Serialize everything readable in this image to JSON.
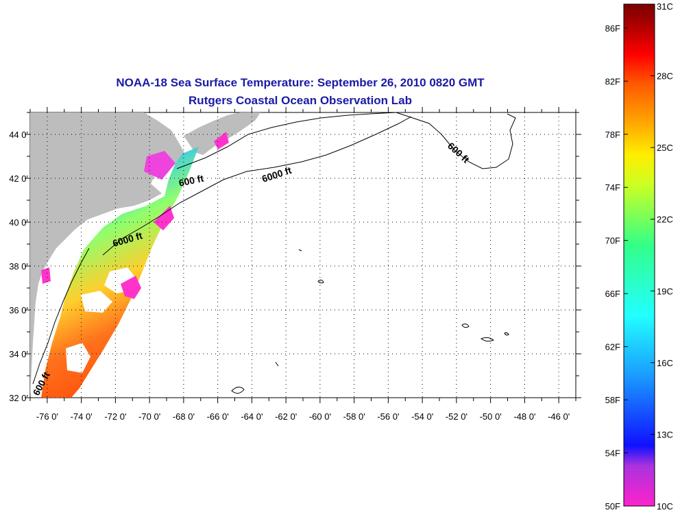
{
  "title": {
    "line1": "NOAA-18 Sea Surface Temperature:  September 26, 2010 0820 GMT",
    "line2": "Rutgers Coastal Ocean Observation Lab"
  },
  "map": {
    "lon_labels": [
      "-76 0'",
      "-74 0'",
      "-72 0'",
      "-70 0'",
      "-68 0'",
      "-66 0'",
      "-64 0'",
      "-62 0'",
      "-60 0'",
      "-58 0'",
      "-56 0'",
      "-54 0'",
      "-52 0'",
      "-50 0'",
      "-48 0'",
      "-46 0'"
    ],
    "lat_labels": [
      "44 0'",
      "42 0'",
      "40 0'",
      "38 0'",
      "36 0'",
      "34 0'",
      "32 0'"
    ],
    "contour_labels": [
      "600 ft",
      "6000 ft",
      "600 ft",
      "6000 ft",
      "600 ft"
    ],
    "lon_range": [
      -77,
      -45
    ],
    "lat_range": [
      32,
      45
    ]
  },
  "colorbar": {
    "f_labels": [
      "86F",
      "82F",
      "78F",
      "74F",
      "70F",
      "66F",
      "62F",
      "58F",
      "54F",
      "50F"
    ],
    "c_labels": [
      "31C",
      "28C",
      "25C",
      "22C",
      "19C",
      "16C",
      "13C",
      "10C"
    ],
    "colors": [
      "#ff22cc",
      "#9933dd",
      "#1010ff",
      "#1a9cff",
      "#22ffff",
      "#33ff88",
      "#ccff22",
      "#ffee00",
      "#ffaa00",
      "#ff5a00",
      "#ff0000",
      "#aa0000",
      "#7a0000"
    ]
  }
}
